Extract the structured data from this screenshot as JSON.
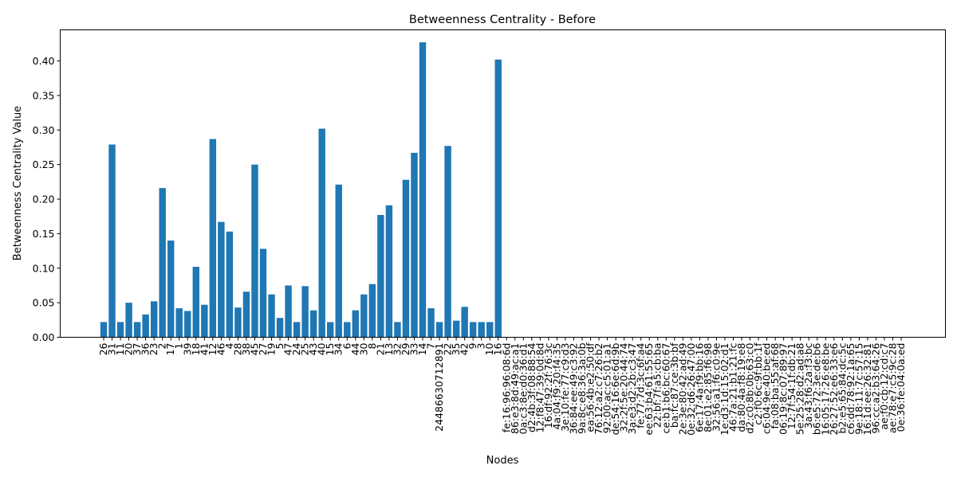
{
  "chart_data": {
    "type": "bar",
    "title": "Betweenness Centrality - Before",
    "xlabel": "Nodes",
    "ylabel": "Betweenness Centrality Value",
    "ylim": [
      0,
      0.445
    ],
    "yticks": [
      "0.00",
      "0.05",
      "0.10",
      "0.15",
      "0.20",
      "0.25",
      "0.30",
      "0.35",
      "0.40"
    ],
    "ytick_values": [
      0,
      0.05,
      0.1,
      0.15,
      0.2,
      0.25,
      0.3,
      0.35,
      0.4
    ],
    "bar_color": "#1f77b4",
    "grid": false,
    "categories": [
      "26",
      "31",
      "11",
      "20",
      "37",
      "36",
      "23",
      "2",
      "17",
      "1",
      "39",
      "18",
      "41",
      "12",
      "46",
      "4",
      "28",
      "38",
      "45",
      "27",
      "19",
      "5",
      "47",
      "24",
      "25",
      "43",
      "40",
      "15",
      "34",
      "6",
      "44",
      "30",
      "8",
      "21",
      "13",
      "32",
      "29",
      "33",
      "14",
      "7",
      "24486630712891",
      "22",
      "35",
      "42",
      "9",
      "3",
      "10",
      "16",
      "fe:16:96:96:08:6d",
      "86:e3:8d:49:ac:a1",
      "0a:c3:8e:d0:36:d1",
      "d2:4b:3f:08:88:54",
      "12:f8:47:39:0d:8d",
      "16:df:92:2f:76:3c",
      "4a:04:f9:20:f4:35",
      "3e:10:fe:77:c9:d3",
      "36:84:ee:49:c3:92",
      "9a:8c:e8:36:3a:0b",
      "ea:56:4b:e2:50:df",
      "76:12:a2:c7:26:b2",
      "92:00:ac:c5:01:a1",
      "de:54:16:6e:6d:9b",
      "32:2f:5e:20:44:74",
      "3a:e3:d2:2b:c3:47",
      "fe:77:7d:3c:6f:a4",
      "ee:63:b4:61:55:65",
      "22:bf:7f:a5:cb:ba",
      "ce:b1:b6:bc:60:67",
      "ba:fc:87:ce:3b:bf",
      "2e:3e:80:42:ad:49",
      "0e:32:d6:26:47:00",
      "6e:17:4a:f9:bb:16",
      "8e:01:e2:85:f6:98",
      "32:56:a1:f6:c0:9e",
      "1e:d3:1d:15:02:d1",
      "46:7a:21:b1:21:fc",
      "da:80:4a:f8:19:e8",
      "d2:c0:8b:0b:63:c0",
      "c2:f0:6c:9f:bb:1f",
      "c6:04:9e:40:be:ed",
      "fa:08:ba:55:af:68",
      "06:19:8c:07:89:97",
      "12:7f:54:1f:db:21",
      "5e:25:28:d2:ad:a8",
      "3a:43:f6:2a:f3:bc",
      "b6:e5:72:3e:de:b6",
      "16:05:17:26:e8:be",
      "26:27:52:e6:33:e6",
      "b2:e5:65:84:dc:5c",
      "c6:dd:78:92:1a:65",
      "9e:18:11:7c:57:15",
      "16:1d:ee:26:32:81",
      "96:cc:a2:b3:64:26",
      "ae:f0:cb:12:cd:c7",
      "ae:78:e7:c5:9c:28",
      "0e:36:fe:04:0a:ed"
    ],
    "values": [
      0.022,
      0.279,
      0.022,
      0.05,
      0.022,
      0.033,
      0.052,
      0.216,
      0.14,
      0.042,
      0.038,
      0.102,
      0.047,
      0.287,
      0.167,
      0.153,
      0.043,
      0.066,
      0.25,
      0.128,
      0.062,
      0.028,
      0.075,
      0.022,
      0.074,
      0.039,
      0.302,
      0.022,
      0.221,
      0.022,
      0.039,
      0.062,
      0.077,
      0.177,
      0.191,
      0.022,
      0.228,
      0.267,
      0.427,
      0.042,
      0.022,
      0.277,
      0.024,
      0.044,
      0.022,
      0.022,
      0.022,
      0.402,
      0,
      0,
      0,
      0,
      0,
      0,
      0,
      0,
      0,
      0,
      0,
      0,
      0,
      0,
      0,
      0,
      0,
      0,
      0,
      0,
      0,
      0,
      0,
      0,
      0,
      0,
      0,
      0,
      0,
      0,
      0,
      0,
      0,
      0,
      0,
      0,
      0,
      0,
      0,
      0,
      0,
      0,
      0,
      0,
      0,
      0,
      0,
      0
    ]
  }
}
